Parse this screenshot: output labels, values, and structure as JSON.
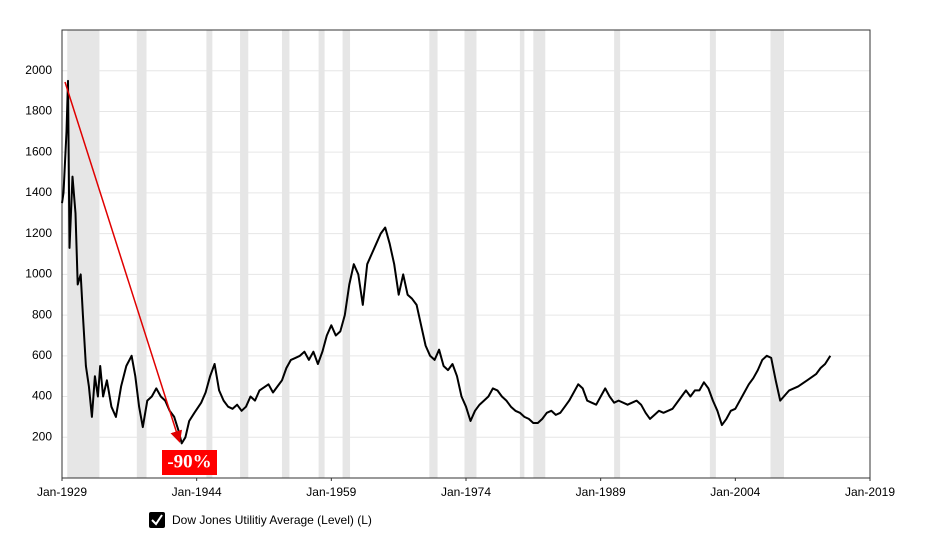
{
  "chart_data": {
    "type": "line",
    "annotation": "-90%",
    "legend": "bottom-left",
    "grid": true,
    "recession_color": "#e6e6e6",
    "recessions": [
      [
        "1929-08",
        "1933-03"
      ],
      [
        "1937-05",
        "1938-06"
      ],
      [
        "1945-02",
        "1945-10"
      ],
      [
        "1948-11",
        "1949-10"
      ],
      [
        "1953-07",
        "1954-05"
      ],
      [
        "1957-08",
        "1958-04"
      ],
      [
        "1960-04",
        "1961-02"
      ],
      [
        "1969-12",
        "1970-11"
      ],
      [
        "1973-11",
        "1975-03"
      ],
      [
        "1980-01",
        "1980-07"
      ],
      [
        "1981-07",
        "1982-11"
      ],
      [
        "1990-07",
        "1991-03"
      ],
      [
        "2001-03",
        "2001-11"
      ],
      [
        "2007-12",
        "2009-06"
      ]
    ],
    "x": [
      "1929-01",
      "1929-03",
      "1929-07",
      "1929-09",
      "1929-11",
      "1930-03",
      "1930-07",
      "1930-10",
      "1931-02",
      "1931-05",
      "1931-09",
      "1932-01",
      "1932-05",
      "1932-09",
      "1933-01",
      "1933-04",
      "1933-08",
      "1934-01",
      "1934-07",
      "1935-01",
      "1935-08",
      "1936-03",
      "1936-10",
      "1937-03",
      "1937-08",
      "1938-01",
      "1938-07",
      "1939-01",
      "1939-07",
      "1940-01",
      "1940-07",
      "1941-01",
      "1941-07",
      "1942-01",
      "1942-05",
      "1942-10",
      "1943-03",
      "1943-10",
      "1944-07",
      "1945-01",
      "1945-07",
      "1946-01",
      "1946-07",
      "1947-01",
      "1947-07",
      "1948-01",
      "1948-07",
      "1949-01",
      "1949-07",
      "1950-01",
      "1950-07",
      "1951-01",
      "1952-01",
      "1952-07",
      "1953-01",
      "1953-07",
      "1954-01",
      "1954-07",
      "1955-01",
      "1955-07",
      "1956-01",
      "1956-07",
      "1957-01",
      "1957-07",
      "1958-01",
      "1958-07",
      "1959-01",
      "1959-07",
      "1960-01",
      "1960-07",
      "1961-01",
      "1961-07",
      "1962-01",
      "1962-07",
      "1963-01",
      "1963-07",
      "1964-01",
      "1964-07",
      "1965-01",
      "1965-07",
      "1966-01",
      "1966-07",
      "1967-01",
      "1967-07",
      "1968-01",
      "1968-07",
      "1969-01",
      "1969-07",
      "1970-01",
      "1970-07",
      "1971-01",
      "1971-07",
      "1972-01",
      "1972-07",
      "1973-01",
      "1973-07",
      "1974-01",
      "1974-07",
      "1975-01",
      "1975-07",
      "1976-01",
      "1976-07",
      "1977-01",
      "1977-07",
      "1978-01",
      "1978-07",
      "1979-01",
      "1979-07",
      "1980-01",
      "1980-07",
      "1981-01",
      "1981-07",
      "1982-01",
      "1982-07",
      "1983-01",
      "1983-07",
      "1984-01",
      "1984-07",
      "1985-01",
      "1985-07",
      "1986-01",
      "1986-07",
      "1987-01",
      "1987-07",
      "1988-01",
      "1988-07",
      "1989-01",
      "1989-07",
      "1990-01",
      "1990-07",
      "1991-01",
      "1992-01",
      "1993-01",
      "1993-07",
      "1994-01",
      "1994-07",
      "1995-01",
      "1995-07",
      "1996-01",
      "1997-01",
      "1998-01",
      "1998-07",
      "1999-01",
      "1999-07",
      "2000-01",
      "2000-07",
      "2001-01",
      "2001-07",
      "2002-01",
      "2002-07",
      "2003-01",
      "2003-07",
      "2004-01",
      "2005-01",
      "2005-07",
      "2006-01",
      "2006-07",
      "2007-01",
      "2007-07",
      "2008-01",
      "2008-07",
      "2009-01",
      "2010-01",
      "2011-01",
      "2012-01",
      "2013-01",
      "2013-07",
      "2014-01",
      "2014-08"
    ],
    "series": [
      {
        "name": "Dow Jones Utilitiy Average (Level) (L)",
        "color": "#000000",
        "values": [
          1350,
          1400,
          1700,
          1950,
          1130,
          1480,
          1300,
          950,
          1000,
          800,
          550,
          450,
          300,
          500,
          400,
          550,
          400,
          480,
          350,
          300,
          450,
          550,
          600,
          500,
          350,
          250,
          380,
          400,
          440,
          400,
          380,
          330,
          300,
          230,
          170,
          200,
          280,
          320,
          370,
          420,
          500,
          560,
          430,
          380,
          350,
          340,
          360,
          330,
          350,
          400,
          380,
          430,
          460,
          420,
          450,
          480,
          540,
          580,
          590,
          600,
          620,
          580,
          620,
          560,
          620,
          700,
          750,
          700,
          720,
          800,
          950,
          1050,
          1000,
          850,
          1050,
          1100,
          1150,
          1200,
          1230,
          1150,
          1050,
          900,
          1000,
          900,
          880,
          850,
          750,
          650,
          600,
          580,
          630,
          550,
          530,
          560,
          500,
          400,
          350,
          280,
          330,
          360,
          380,
          400,
          440,
          430,
          400,
          380,
          350,
          330,
          320,
          300,
          290,
          270,
          270,
          290,
          320,
          330,
          310,
          320,
          350,
          380,
          420,
          460,
          440,
          380,
          370,
          360,
          400,
          440,
          400,
          370,
          380,
          360,
          380,
          360,
          320,
          290,
          310,
          330,
          320,
          340,
          400,
          430,
          400,
          430,
          430,
          470,
          440,
          380,
          330,
          260,
          290,
          330,
          340,
          420,
          460,
          490,
          530,
          580,
          600,
          590,
          480,
          380,
          430,
          450,
          480,
          510,
          540,
          560,
          600
        ]
      }
    ],
    "xlim": [
      "1929-01",
      "2019-01"
    ],
    "xticks": [
      {
        "value": "1929-01",
        "label": "Jan-1929"
      },
      {
        "value": "1944-01",
        "label": "Jan-1944"
      },
      {
        "value": "1959-01",
        "label": "Jan-1959"
      },
      {
        "value": "1974-01",
        "label": "Jan-1974"
      },
      {
        "value": "1989-01",
        "label": "Jan-1989"
      },
      {
        "value": "2004-01",
        "label": "Jan-2004"
      },
      {
        "value": "2019-01",
        "label": "Jan-2019"
      }
    ],
    "ylim": [
      0,
      2200
    ],
    "yticks": [
      200,
      400,
      600,
      800,
      1000,
      1200,
      1400,
      1600,
      1800,
      2000
    ]
  }
}
